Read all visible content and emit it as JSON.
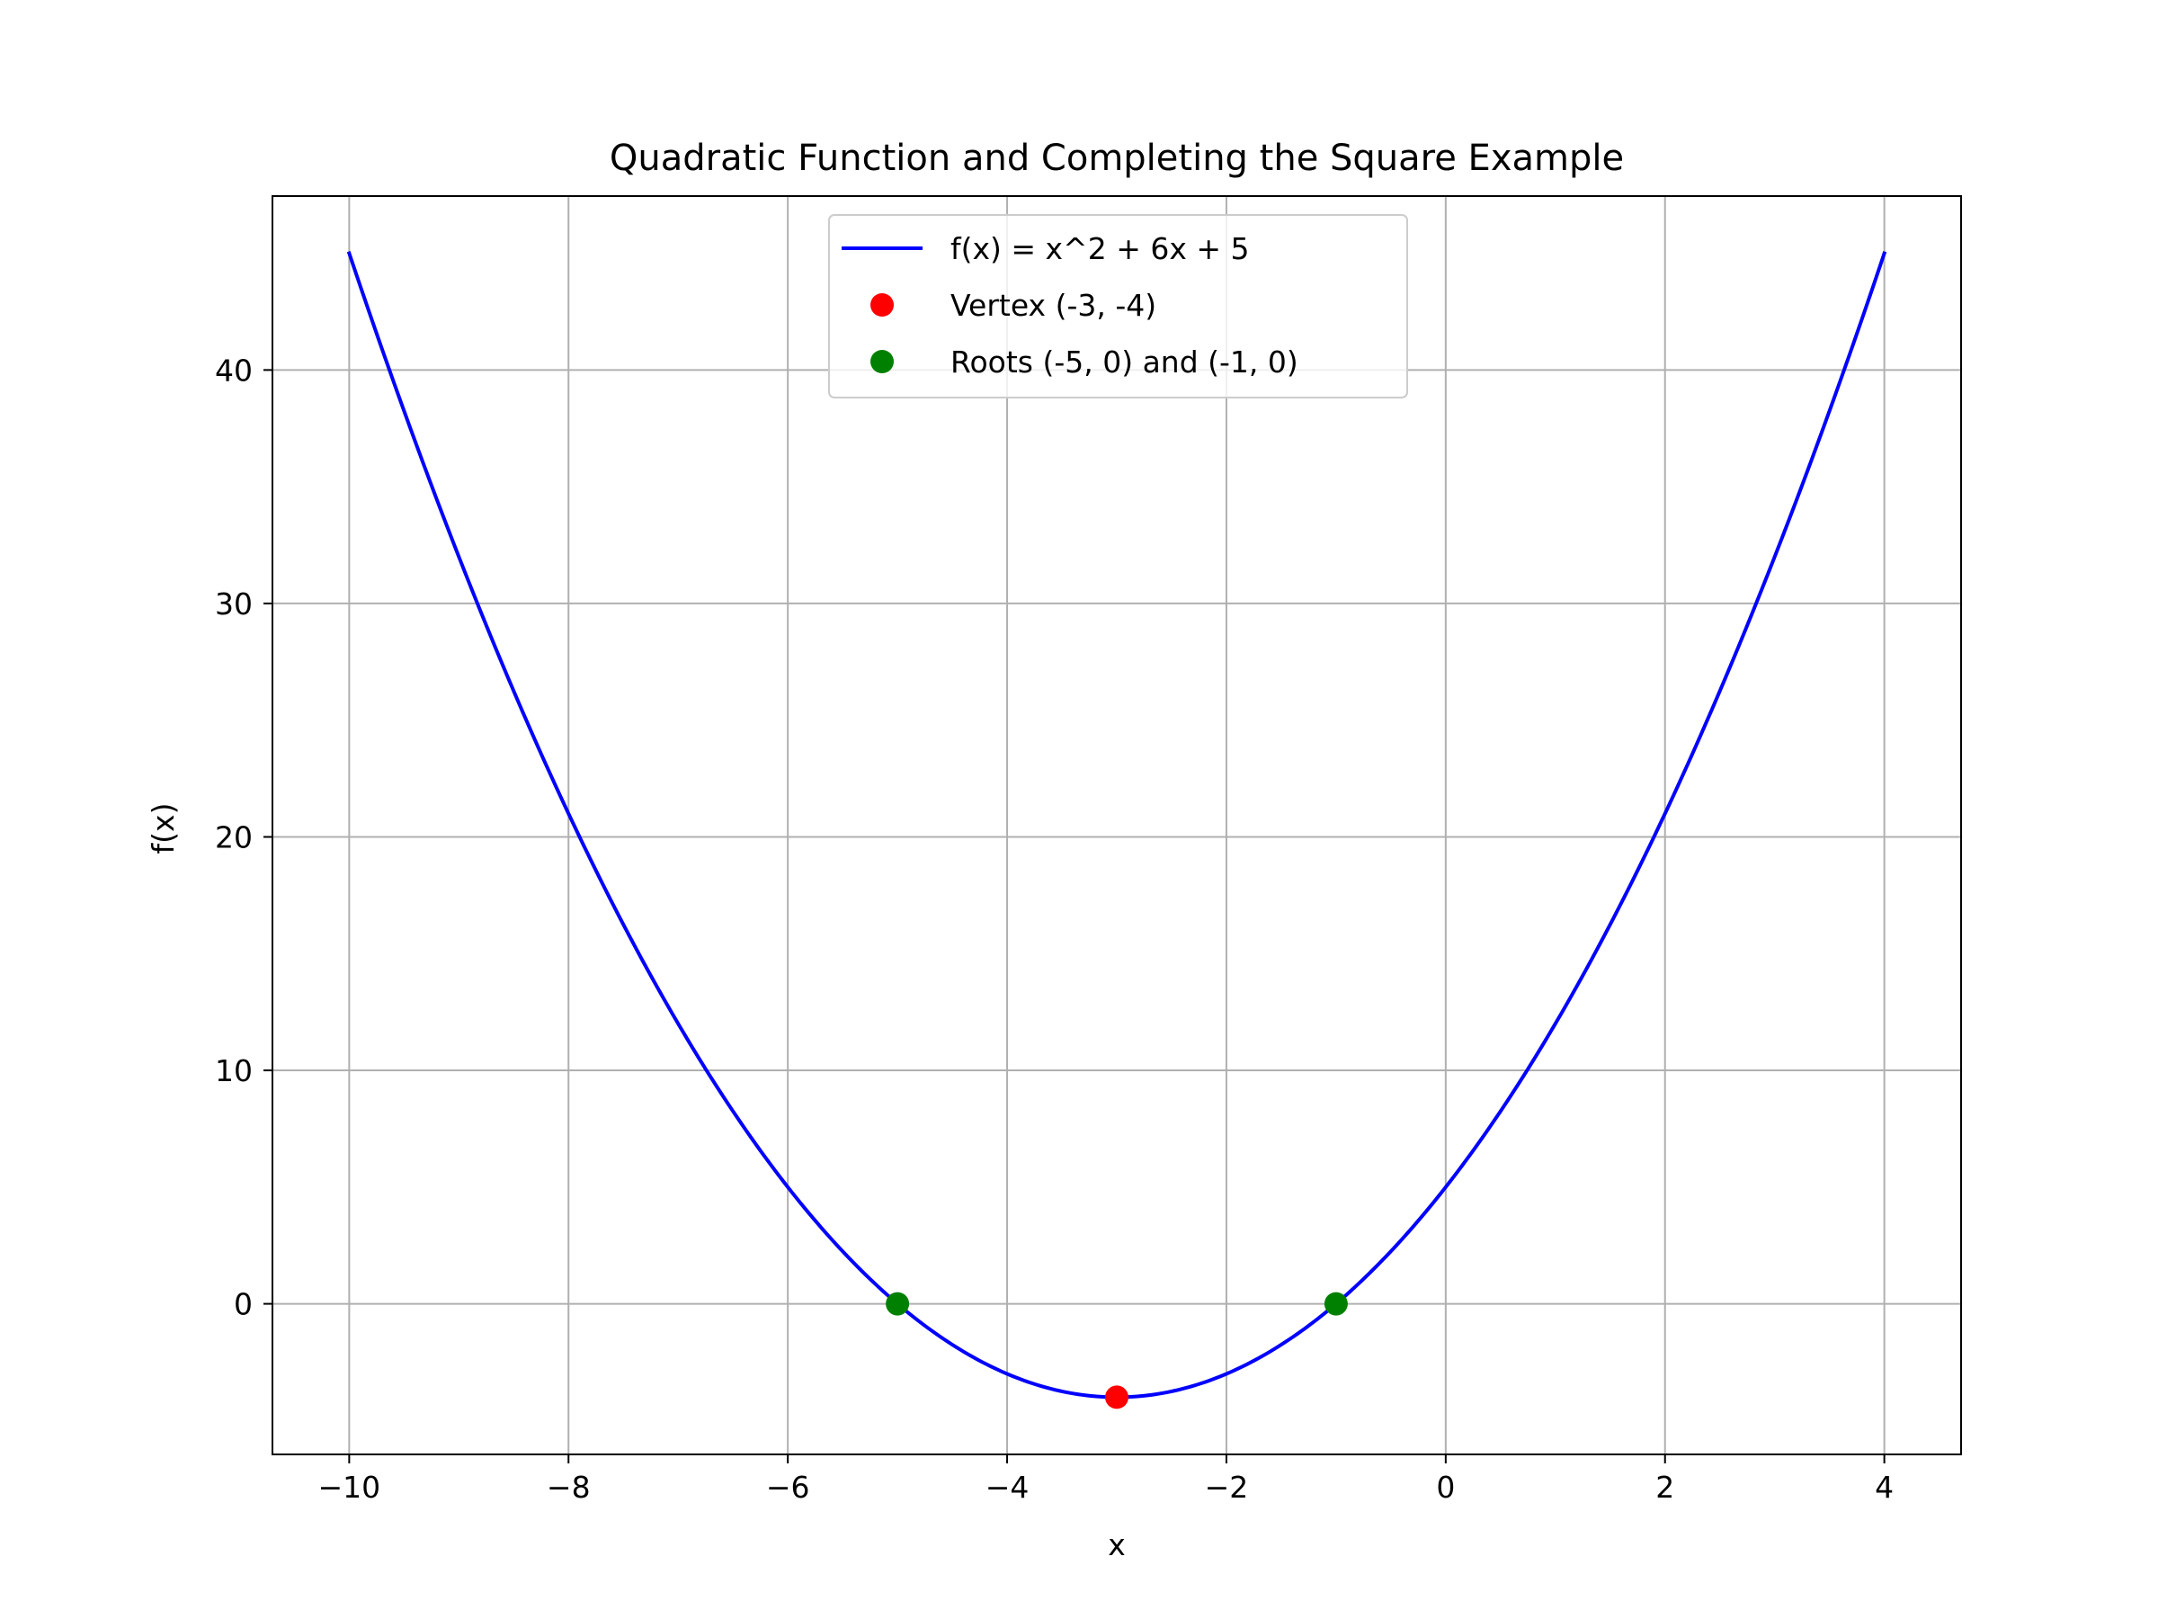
{
  "chart_data": {
    "type": "line",
    "title": "Quadratic Function and Completing the Square Example",
    "xlabel": "x",
    "ylabel": "f(x)",
    "xlim": [
      -10.7,
      4.7
    ],
    "ylim": [
      -6.45,
      47.45
    ],
    "xticks": [
      -10,
      -8,
      -6,
      -4,
      -2,
      0,
      2,
      4
    ],
    "xtick_labels": [
      "−10",
      "−8",
      "−6",
      "−4",
      "−2",
      "0",
      "2",
      "4"
    ],
    "yticks": [
      0,
      10,
      20,
      30,
      40
    ],
    "ytick_labels": [
      "0",
      "10",
      "20",
      "30",
      "40"
    ],
    "grid": true,
    "legend_position": "upper center",
    "series": [
      {
        "name": "f(x) = x^2 + 6x + 5",
        "kind": "line",
        "color": "#0000ff",
        "coefficients": {
          "a": 1,
          "b": 6,
          "c": 5
        },
        "x_range": [
          -10,
          4
        ],
        "x": [
          -10,
          -9,
          -8,
          -7,
          -6,
          -5,
          -4,
          -3,
          -2,
          -1,
          0,
          1,
          2,
          3,
          4
        ],
        "y": [
          45,
          32,
          21,
          12,
          5,
          0,
          -3,
          -4,
          -3,
          0,
          5,
          12,
          21,
          32,
          45
        ]
      },
      {
        "name": "Vertex (-3, -4)",
        "kind": "point",
        "color": "#ff0000",
        "x": [
          -3
        ],
        "y": [
          -4
        ]
      },
      {
        "name": "Roots (-5, 0) and (-1, 0)",
        "kind": "point",
        "color": "#008000",
        "x": [
          -5,
          -1
        ],
        "y": [
          0,
          0
        ]
      }
    ]
  }
}
